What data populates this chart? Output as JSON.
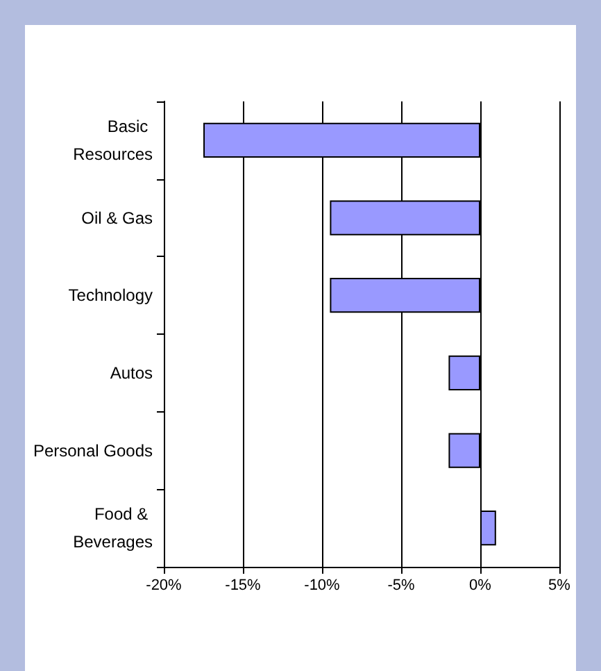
{
  "chart_data": {
    "type": "bar",
    "orientation": "horizontal",
    "categories": [
      "Basic Resources",
      "Oil & Gas",
      "Technology",
      "Autos",
      "Personal Goods",
      "Food & Beverages"
    ],
    "values": [
      -17.5,
      -9.5,
      -9.5,
      -2,
      -2,
      1
    ],
    "color": "#9999ff",
    "xlim": [
      -20,
      5
    ],
    "xticks": [
      {
        "value": -20,
        "label": "-20%"
      },
      {
        "value": -15,
        "label": "-15%"
      },
      {
        "value": -10,
        "label": "-10%"
      },
      {
        "value": -5,
        "label": "-5%"
      },
      {
        "value": 0,
        "label": "0%"
      },
      {
        "value": 5,
        "label": "5%"
      }
    ],
    "grid": "x"
  }
}
